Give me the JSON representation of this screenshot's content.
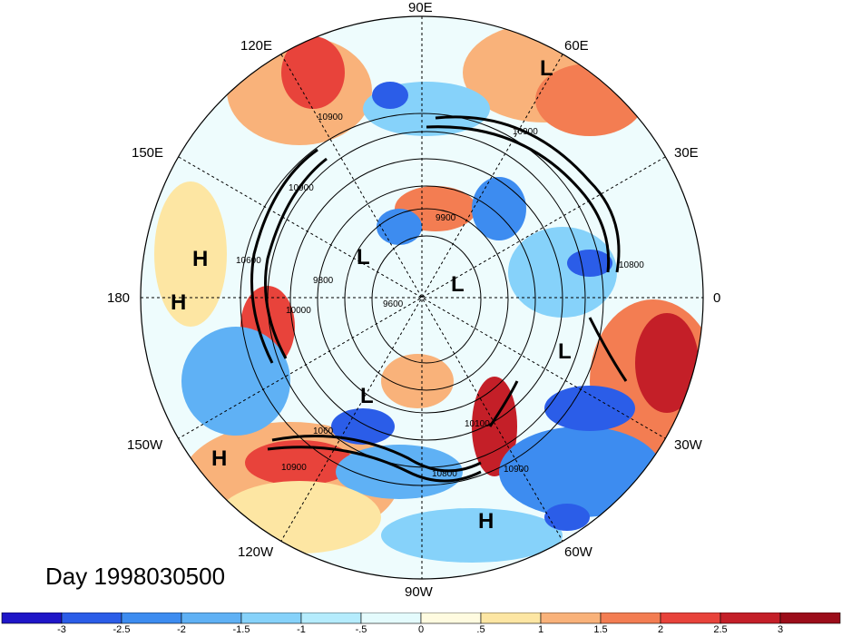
{
  "map": {
    "longitude_labels": [
      "90E",
      "60E",
      "30E",
      "0",
      "30W",
      "60W",
      "90W",
      "120W",
      "150W",
      "180",
      "150E",
      "120E"
    ],
    "pressure_systems": [
      "L",
      "L",
      "L",
      "L",
      "L",
      "H",
      "H",
      "H",
      "H"
    ],
    "contour_labels": [
      "10900",
      "10900",
      "10900",
      "10900",
      "10900",
      "10800",
      "10800",
      "10100",
      "9900",
      "9800",
      "9600",
      "10000",
      "10600",
      "1060"
    ],
    "day_label": "Day 1998030500"
  },
  "colorbar": {
    "ticks": [
      "-3",
      "-2.5",
      "-2",
      "-1.5",
      "-1",
      "-.5",
      "0",
      ".5",
      "1",
      "1.5",
      "2",
      "2.5",
      "3"
    ],
    "colors": [
      "#1f16c8",
      "#2b5de8",
      "#3d8cf0",
      "#5fb1f5",
      "#86d2fa",
      "#b5ecfd",
      "#e4fbfd",
      "#fffbe0",
      "#fde6a3",
      "#f9b27a",
      "#f37d52",
      "#e8433b",
      "#c41f28",
      "#9c0d1a"
    ]
  }
}
